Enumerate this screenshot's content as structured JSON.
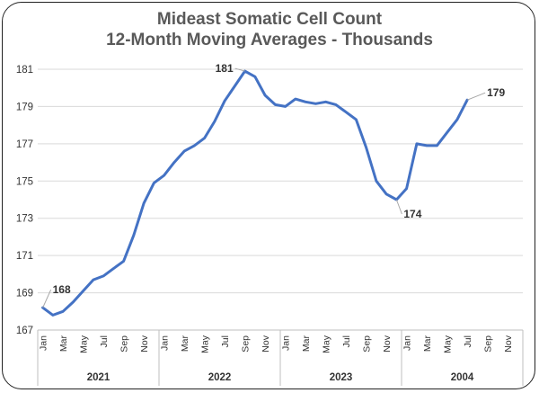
{
  "chart_data": {
    "type": "line",
    "title": "Mideast Somatic Cell Count",
    "subtitle": "12-Month Moving Averages - Thousands",
    "xlabel": "",
    "ylabel": "",
    "ylim": [
      167,
      181
    ],
    "yticks": [
      "167",
      "169",
      "171",
      "173",
      "175",
      "177",
      "179",
      "181"
    ],
    "grid": true,
    "legend": "none",
    "colors": {
      "line": "#4472c4",
      "grid": "#d9d9d9"
    },
    "month_ticks": [
      "Jan",
      "Mar",
      "May",
      "Jul",
      "Sep",
      "Nov",
      "Jan",
      "Mar",
      "May",
      "Jul",
      "Sep",
      "Nov",
      "Jan",
      "Mar",
      "May",
      "Jul",
      "Sep",
      "Nov",
      "Jan",
      "Mar",
      "May",
      "Jul",
      "Sep",
      "Nov"
    ],
    "year_groups": [
      "2021",
      "2022",
      "2023",
      "2004"
    ],
    "series": [
      {
        "values": [
          168.2,
          167.8,
          168.0,
          168.5,
          169.1,
          169.7,
          169.9,
          170.3,
          170.7,
          172.1,
          173.8,
          174.9,
          175.3,
          176.0,
          176.6,
          176.9,
          177.3,
          178.2,
          179.3,
          180.1,
          180.9,
          180.6,
          179.6,
          179.1,
          179.0,
          179.4,
          179.25,
          179.15,
          179.25,
          179.1,
          178.7,
          178.3,
          176.8,
          175.0,
          174.3,
          174.0,
          174.6,
          177.0,
          176.9,
          176.9,
          177.6,
          178.3,
          179.35
        ]
      }
    ],
    "annotations": [
      {
        "text": "168",
        "index": 0
      },
      {
        "text": "181",
        "index": 20
      },
      {
        "text": "174",
        "index": 35
      },
      {
        "text": "179",
        "index": 42
      }
    ]
  }
}
